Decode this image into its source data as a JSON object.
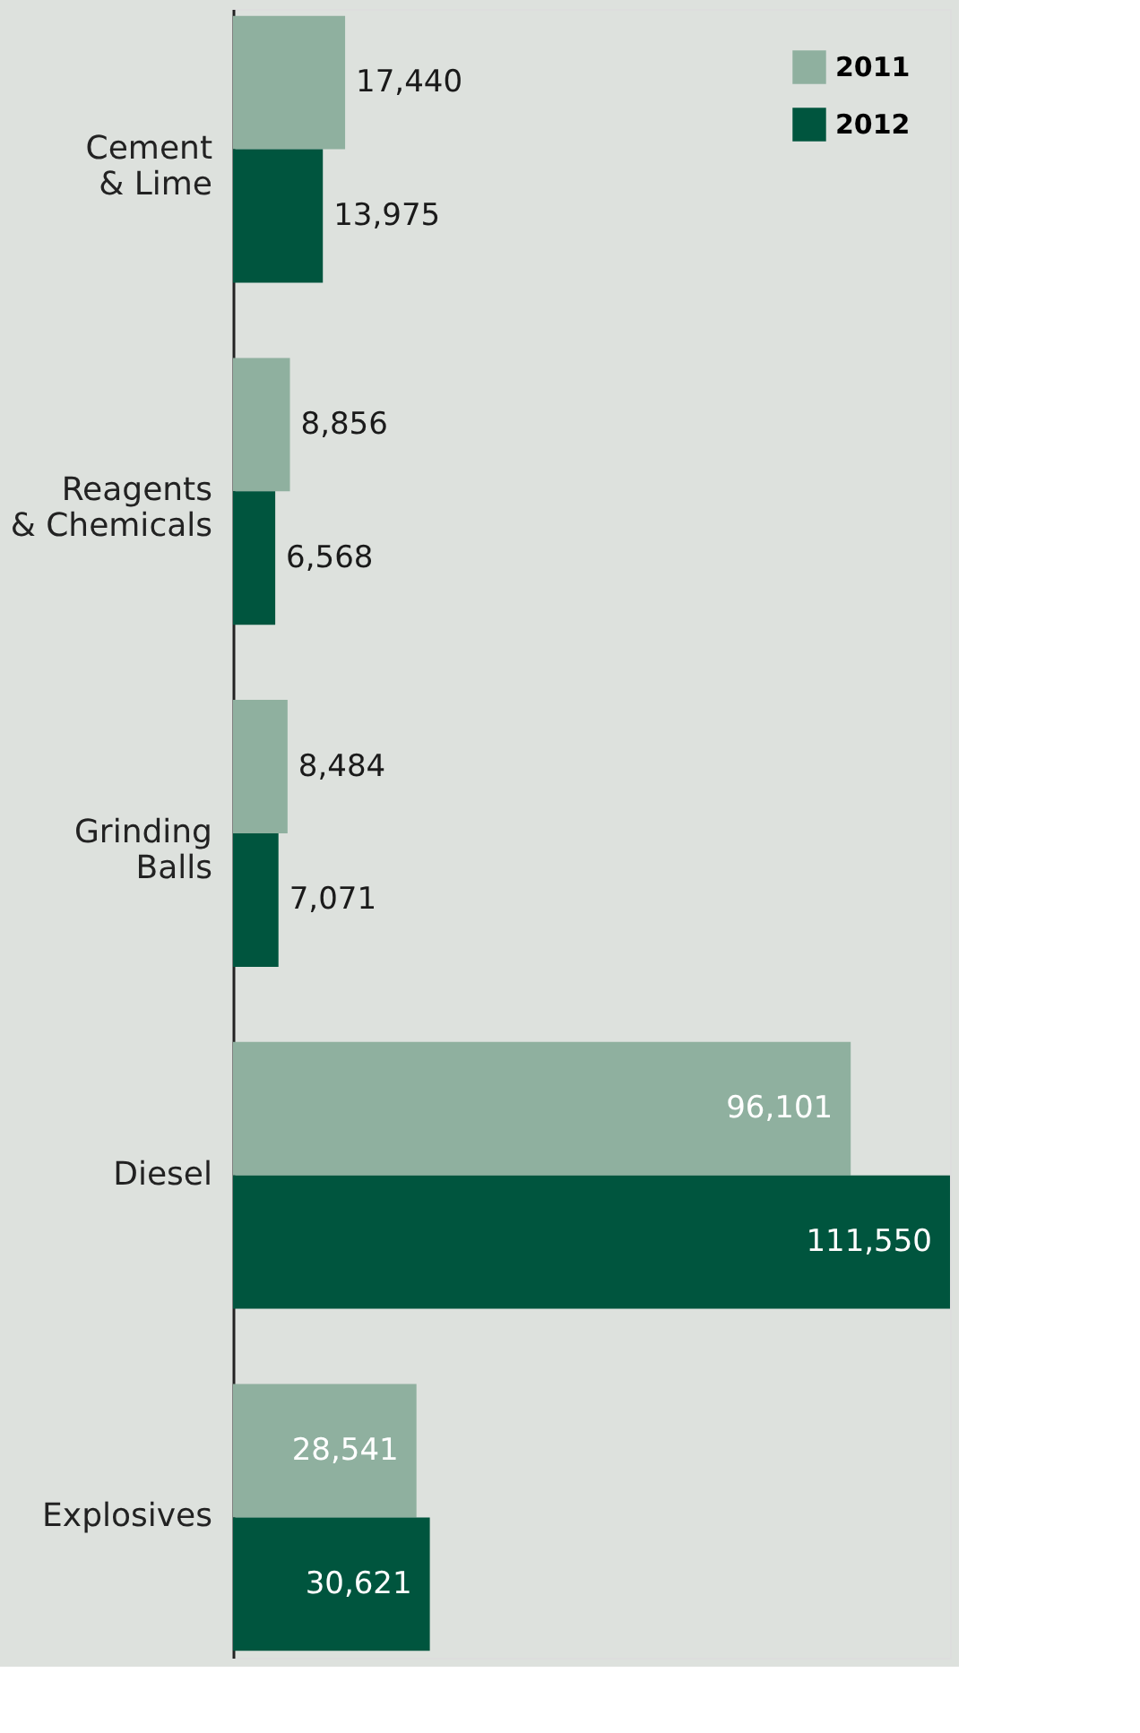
{
  "chart_data": {
    "type": "bar",
    "orientation": "horizontal",
    "categories": [
      "Cement\n& Lime",
      "Reagents\n& Chemicals",
      "Grinding\nBalls",
      "Diesel",
      "Explosives"
    ],
    "series": [
      {
        "name": "2011",
        "color": "#8fb09f",
        "values": [
          17440,
          8856,
          8484,
          96101,
          28541
        ],
        "value_labels": [
          "17,440",
          "8,856",
          "8,484",
          "96,101",
          "28,541"
        ]
      },
      {
        "name": "2012",
        "color": "#00553e",
        "values": [
          13975,
          6568,
          7071,
          111550,
          30621
        ],
        "value_labels": [
          "13,975",
          "6,568",
          "7,071",
          "111,550",
          "30,621"
        ]
      }
    ],
    "legend": "top right"
  }
}
